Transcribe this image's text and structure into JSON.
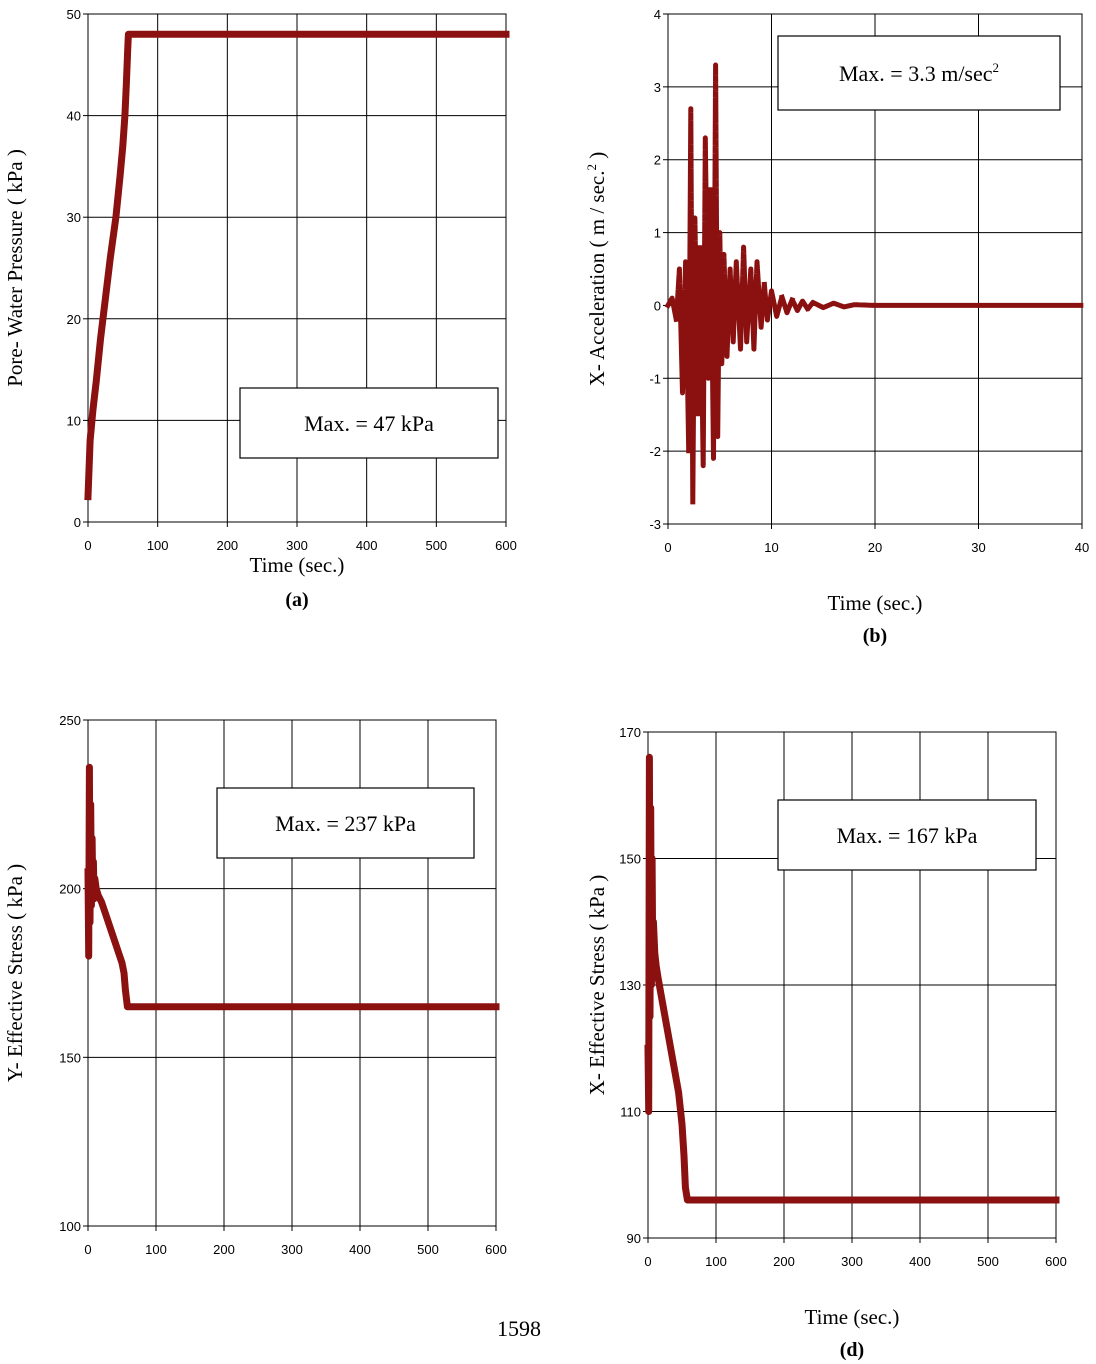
{
  "page": {
    "page_number": "1598"
  },
  "chart_data": [
    {
      "id": "a",
      "type": "line",
      "caption": "(a)",
      "xlabel": "Time (sec.)",
      "ylabel": "Pore- Water Pressure ( kPa )",
      "xlim": [
        0,
        600
      ],
      "ylim": [
        0,
        50
      ],
      "xticks": [
        0,
        100,
        200,
        300,
        400,
        500,
        600
      ],
      "yticks": [
        0,
        10,
        20,
        30,
        40,
        50
      ],
      "grid": true,
      "annotation": {
        "text": "Max. = 47 kPa"
      },
      "series_color": "#8b1010",
      "series": [
        {
          "x": [
            0,
            3,
            7,
            12,
            18,
            25,
            32,
            40,
            46,
            50,
            53,
            55,
            57,
            58,
            60,
            100,
            200,
            300,
            400,
            500,
            600
          ],
          "y": [
            2.5,
            8,
            11,
            14,
            18,
            22,
            26,
            30,
            34,
            37,
            40,
            43,
            46.5,
            48,
            48,
            48,
            48,
            48,
            48,
            48,
            48
          ]
        }
      ]
    },
    {
      "id": "b",
      "type": "line",
      "caption": "(b)",
      "xlabel": "Time (sec.)",
      "ylabel": "X- Acceleration ( m / sec.2 )",
      "ylabel_main": "X- Acceleration ( m / sec.",
      "ylabel_sup": "2",
      "ylabel_end": " )",
      "xlim": [
        0,
        40
      ],
      "ylim": [
        -3,
        4
      ],
      "xticks": [
        0,
        10,
        20,
        30,
        40
      ],
      "yticks": [
        -3,
        -2,
        -1,
        0,
        1,
        2,
        3,
        4
      ],
      "grid": true,
      "annotation": {
        "text": "Max. = 3.3 m/sec",
        "sup": "2"
      },
      "series_color": "#8b1010",
      "series": [
        {
          "x": [
            0,
            0.4,
            0.8,
            1.1,
            1.4,
            1.7,
            2.0,
            2.2,
            2.4,
            2.6,
            2.9,
            3.1,
            3.4,
            3.6,
            3.9,
            4.1,
            4.4,
            4.6,
            4.8,
            5.0,
            5.2,
            5.4,
            5.7,
            6.0,
            6.3,
            6.6,
            7.0,
            7.3,
            7.6,
            8.0,
            8.3,
            8.6,
            9.0,
            9.3,
            9.6,
            10.0,
            10.5,
            11.0,
            11.5,
            12.0,
            12.5,
            13.0,
            13.5,
            14.0,
            15.0,
            16.0,
            17.0,
            18.0,
            20.0,
            25.0,
            30.0,
            35.0,
            40.0
          ],
          "y": [
            0,
            0.1,
            -0.2,
            0.5,
            -1.2,
            0.6,
            -2.0,
            2.7,
            -2.7,
            1.2,
            -1.5,
            0.8,
            -2.2,
            2.3,
            -1.0,
            1.6,
            -2.1,
            3.3,
            -1.8,
            1.0,
            -0.8,
            0.7,
            -0.7,
            0.5,
            -0.5,
            0.6,
            -0.6,
            0.8,
            -0.5,
            0.5,
            -0.6,
            0.6,
            -0.3,
            0.3,
            -0.2,
            0.2,
            -0.15,
            0.12,
            -0.1,
            0.08,
            -0.07,
            0.06,
            -0.05,
            0.04,
            -0.03,
            0.03,
            -0.02,
            0.01,
            0,
            0,
            0,
            0,
            0
          ]
        }
      ]
    },
    {
      "id": "c",
      "type": "line",
      "caption": "",
      "xlabel": "",
      "ylabel": "Y- Effective Stress ( kPa )",
      "xlim": [
        0,
        600
      ],
      "ylim": [
        100,
        250
      ],
      "xticks": [
        0,
        100,
        200,
        300,
        400,
        500,
        600
      ],
      "yticks": [
        100,
        150,
        200,
        250
      ],
      "grid": true,
      "annotation": {
        "text": "Max. = 237 kPa"
      },
      "series_color": "#8b1010",
      "series": [
        {
          "x": [
            0,
            1,
            2,
            3,
            4,
            5,
            6,
            7,
            8,
            9,
            10,
            12,
            15,
            20,
            25,
            30,
            35,
            40,
            45,
            50,
            53,
            55,
            58,
            60,
            100,
            200,
            300,
            400,
            500,
            600
          ],
          "y": [
            205,
            180,
            236,
            190,
            225,
            195,
            215,
            198,
            208,
            197,
            203,
            200,
            198,
            196,
            193,
            190,
            187,
            184,
            181,
            178,
            175,
            170,
            165,
            165,
            165,
            165,
            165,
            165,
            165,
            165
          ]
        }
      ]
    },
    {
      "id": "d",
      "type": "line",
      "caption": "(d)",
      "xlabel": "Time (sec.)",
      "ylabel": "X- Effective Stress ( kPa )",
      "xlim": [
        0,
        600
      ],
      "ylim": [
        90,
        170
      ],
      "xticks": [
        0,
        100,
        200,
        300,
        400,
        500,
        600
      ],
      "yticks": [
        90,
        110,
        130,
        150,
        170
      ],
      "grid": true,
      "annotation": {
        "text": "Max. = 167 kPa"
      },
      "series_color": "#8b1010",
      "series": [
        {
          "x": [
            0,
            1,
            2,
            3,
            4,
            5,
            6,
            7,
            8,
            10,
            12,
            15,
            20,
            25,
            30,
            35,
            40,
            45,
            50,
            53,
            55,
            58,
            60,
            100,
            200,
            300,
            400,
            500,
            600
          ],
          "y": [
            120,
            110,
            166,
            125,
            158,
            130,
            150,
            132,
            140,
            135,
            133,
            131,
            128,
            125,
            122,
            119,
            116,
            113,
            108,
            103,
            98,
            96,
            96,
            96,
            96,
            96,
            96,
            96,
            96
          ]
        }
      ]
    }
  ]
}
